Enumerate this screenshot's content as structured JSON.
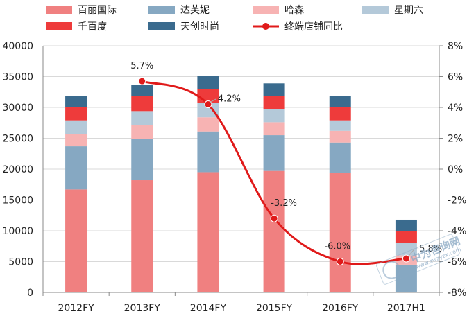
{
  "chart_data": {
    "type": "bar",
    "stacked": true,
    "categories": [
      "2012FY",
      "2013FY",
      "2014FY",
      "2015FY",
      "2016FY",
      "2017H1"
    ],
    "series": [
      {
        "name": "百丽国际",
        "color": "#f08080",
        "values": [
          16700,
          18200,
          19500,
          19700,
          19400,
          0
        ]
      },
      {
        "name": "达芙妮",
        "color": "#86a8c2",
        "values": [
          7000,
          6700,
          6600,
          5800,
          4900,
          4500
        ]
      },
      {
        "name": "哈森",
        "color": "#f7b3b3",
        "values": [
          2000,
          2200,
          2300,
          2100,
          1900,
          1500
        ]
      },
      {
        "name": "星期六",
        "color": "#b4c9d9",
        "values": [
          2200,
          2300,
          2300,
          2100,
          1700,
          2000
        ]
      },
      {
        "name": "千百度",
        "color": "#ee3b3b",
        "values": [
          2100,
          2400,
          2300,
          2100,
          2100,
          2000
        ]
      },
      {
        "name": "天创时尚",
        "color": "#3a6b8e",
        "values": [
          1800,
          1900,
          2100,
          2100,
          1900,
          1800
        ]
      }
    ],
    "line": {
      "name": "终端店铺同比",
      "color": "#e01a1a",
      "values": [
        null,
        5.7,
        4.2,
        -3.2,
        -6.0,
        -5.8
      ],
      "labels": [
        "",
        "5.7%",
        "4.2%",
        "-3.2%",
        "-6.0%",
        "-5.8%"
      ]
    },
    "y_left": {
      "min": 0,
      "max": 40000,
      "step": 5000,
      "ticks": [
        "0",
        "5000",
        "10000",
        "15000",
        "20000",
        "25000",
        "30000",
        "35000",
        "40000"
      ]
    },
    "y_right": {
      "min": -8,
      "max": 8,
      "step": 2,
      "ticks": [
        "-8%",
        "-6%",
        "-4%",
        "-2%",
        "0%",
        "2%",
        "4%",
        "6%",
        "8%"
      ]
    },
    "grid": "horizontal",
    "legend": "top",
    "title": "",
    "xlabel": "",
    "ylabel": ""
  },
  "watermark": {
    "text": "中为咨询网",
    "url": "www.zwzyzx.com"
  }
}
